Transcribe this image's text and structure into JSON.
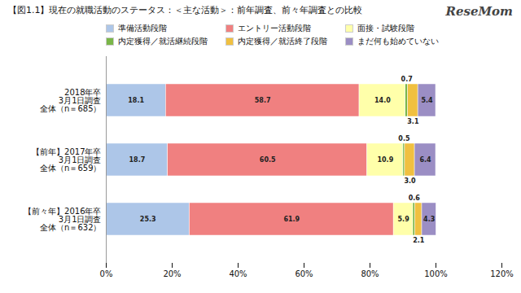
{
  "chart_data": {
    "type": "bar",
    "orientation": "horizontal",
    "stacked": true,
    "title": "【図1.1】現在の就職活動のステータス：＜主な活動＞：前年調査、前々年調査との比較",
    "annotations": [
      "ReseMom"
    ],
    "categories": [
      "2018年卒\n3月1日調査\n全体（n＝685）",
      "【前年】2017年卒\n3月1日調査\n全体（n＝659）",
      "【前々年】2016年卒\n3月1日調査\n全体（n＝632）"
    ],
    "series": [
      {
        "name": "準備活動段階",
        "color": "#adc6e8",
        "values": [
          18.1,
          18.7,
          25.3
        ],
        "value_labels": [
          "18.1",
          "18.7",
          "25.3"
        ]
      },
      {
        "name": "エントリー活動段階",
        "color": "#f08080",
        "values": [
          58.7,
          60.5,
          61.9
        ],
        "value_labels": [
          "58.7",
          "60.5",
          "61.9"
        ]
      },
      {
        "name": "面接・試験段階",
        "color": "#ffffaa",
        "values": [
          14.0,
          10.9,
          5.9
        ],
        "value_labels": [
          "14.0",
          "10.9",
          "5.9"
        ]
      },
      {
        "name": "内定獲得／就活継続段階",
        "color": "#7ab648",
        "values": [
          0.7,
          0.5,
          0.6
        ],
        "value_labels": [
          "0.7",
          "0.5",
          "0.6"
        ]
      },
      {
        "name": "内定獲得／就活終了段階",
        "color": "#f0c040",
        "values": [
          3.1,
          3.0,
          2.1
        ],
        "value_labels": [
          "3.1",
          "3.0",
          "2.1"
        ]
      },
      {
        "name": "まだ何も始めていない",
        "color": "#9b8ec4",
        "values": [
          5.4,
          6.4,
          4.3
        ],
        "value_labels": [
          "5.4",
          "6.4",
          "4.3"
        ]
      }
    ],
    "xlim": [
      0,
      120
    ],
    "xticks": [
      {
        "value": 0,
        "label": "0%"
      },
      {
        "value": 20,
        "label": "20%"
      },
      {
        "value": 40,
        "label": "40%"
      },
      {
        "value": 60,
        "label": "60%"
      },
      {
        "value": 80,
        "label": "80%"
      },
      {
        "value": 100,
        "label": "100%"
      },
      {
        "value": 120,
        "label": "120%"
      }
    ],
    "grid": false,
    "legend": "top",
    "data_labels": true
  }
}
